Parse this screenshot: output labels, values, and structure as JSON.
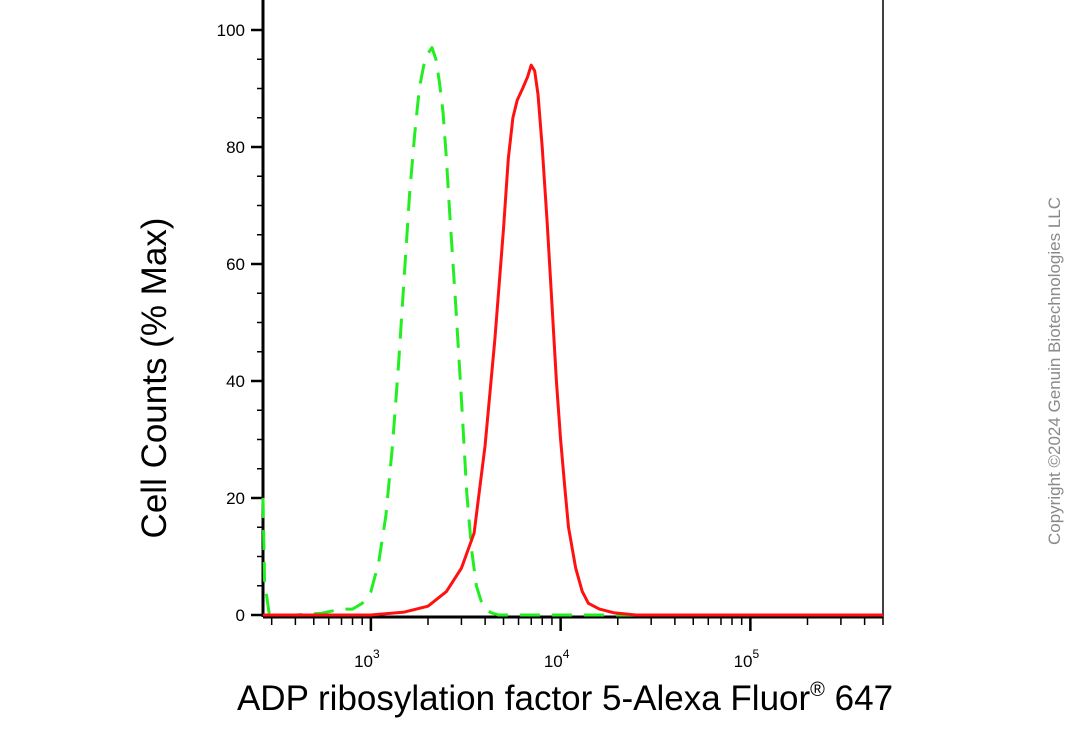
{
  "chart_data": {
    "type": "line",
    "title": "",
    "xlabel": "ADP ribosylation factor 5-Alexa Fluor",
    "xlabel_superscript": "®",
    "xlabel_suffix": " 647",
    "ylabel": "Cell Counts (% Max)",
    "x_scale": "log",
    "xlim": [
      270,
      500000
    ],
    "ylim": [
      0,
      105
    ],
    "y_ticks": [
      "0",
      "20",
      "40",
      "60",
      "80",
      "100"
    ],
    "x_ticks": [
      {
        "base": "10",
        "exp": "3"
      },
      {
        "base": "10",
        "exp": "4"
      },
      {
        "base": "10",
        "exp": "5"
      }
    ],
    "grid": false,
    "series": [
      {
        "color": "#22ee22",
        "style": "dashed",
        "x": [
          270,
          275,
          290,
          320,
          400,
          550,
          700,
          800,
          900,
          1000,
          1100,
          1200,
          1300,
          1400,
          1500,
          1600,
          1700,
          1800,
          1900,
          2000,
          2100,
          2200,
          2300,
          2400,
          2500,
          2600,
          2800,
          3000,
          3200,
          3400,
          3600,
          3800,
          4000,
          4300,
          4700,
          5200,
          6000,
          8000,
          20000,
          100000,
          500000
        ],
        "y": [
          20,
          6,
          0.5,
          0,
          0,
          0.3,
          1,
          1,
          2,
          4,
          9,
          17,
          29,
          43,
          58,
          72,
          82,
          90,
          94,
          96,
          97,
          95,
          91,
          86,
          78,
          69,
          53,
          37,
          21,
          11,
          5,
          2.5,
          1,
          0.4,
          0,
          0,
          0,
          0,
          0,
          0,
          0
        ]
      },
      {
        "color": "#ff1111",
        "style": "solid",
        "x": [
          270,
          1000,
          1500,
          2000,
          2500,
          3000,
          3500,
          4000,
          4500,
          5000,
          5300,
          5600,
          5900,
          6300,
          6700,
          7000,
          7300,
          7600,
          8000,
          8500,
          9000,
          9500,
          10000,
          10500,
          11000,
          12000,
          13000,
          14000,
          16000,
          19000,
          25000,
          40000,
          100000,
          500000
        ],
        "y": [
          0,
          0,
          0.5,
          1.5,
          4,
          8,
          14,
          29,
          47,
          66,
          78,
          85,
          88,
          90,
          92,
          94,
          93,
          89,
          80,
          67,
          53,
          40,
          30,
          22,
          15,
          8,
          4,
          2,
          1,
          0.4,
          0,
          0,
          0,
          0
        ]
      }
    ]
  },
  "watermark": "Copyright ©2024 Genuin Biotechnologies LLC"
}
